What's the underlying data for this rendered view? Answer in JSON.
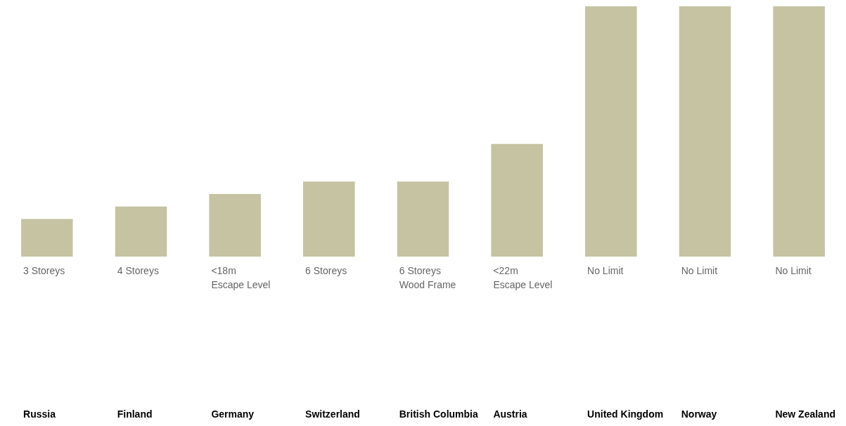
{
  "chart_data": {
    "type": "bar",
    "tick_labels": "x",
    "categories": [
      "Russia",
      "Finland",
      "Germany",
      "Switzerland",
      "British Columbia",
      "Austria",
      "United Kingdom",
      "Norway",
      "New Zealand"
    ],
    "values": [
      3,
      4,
      5,
      6,
      6,
      9,
      20,
      20,
      20
    ],
    "value_labels": [
      "3 Storeys",
      "4 Storeys",
      "<18m Escape Level",
      "6 Storeys",
      "6 Storeys Wood Frame",
      "<22m Escape Level",
      "No Limit",
      "No Limit",
      "No Limit"
    ],
    "color": "#c5c3a2",
    "grid": false,
    "legend": false
  }
}
